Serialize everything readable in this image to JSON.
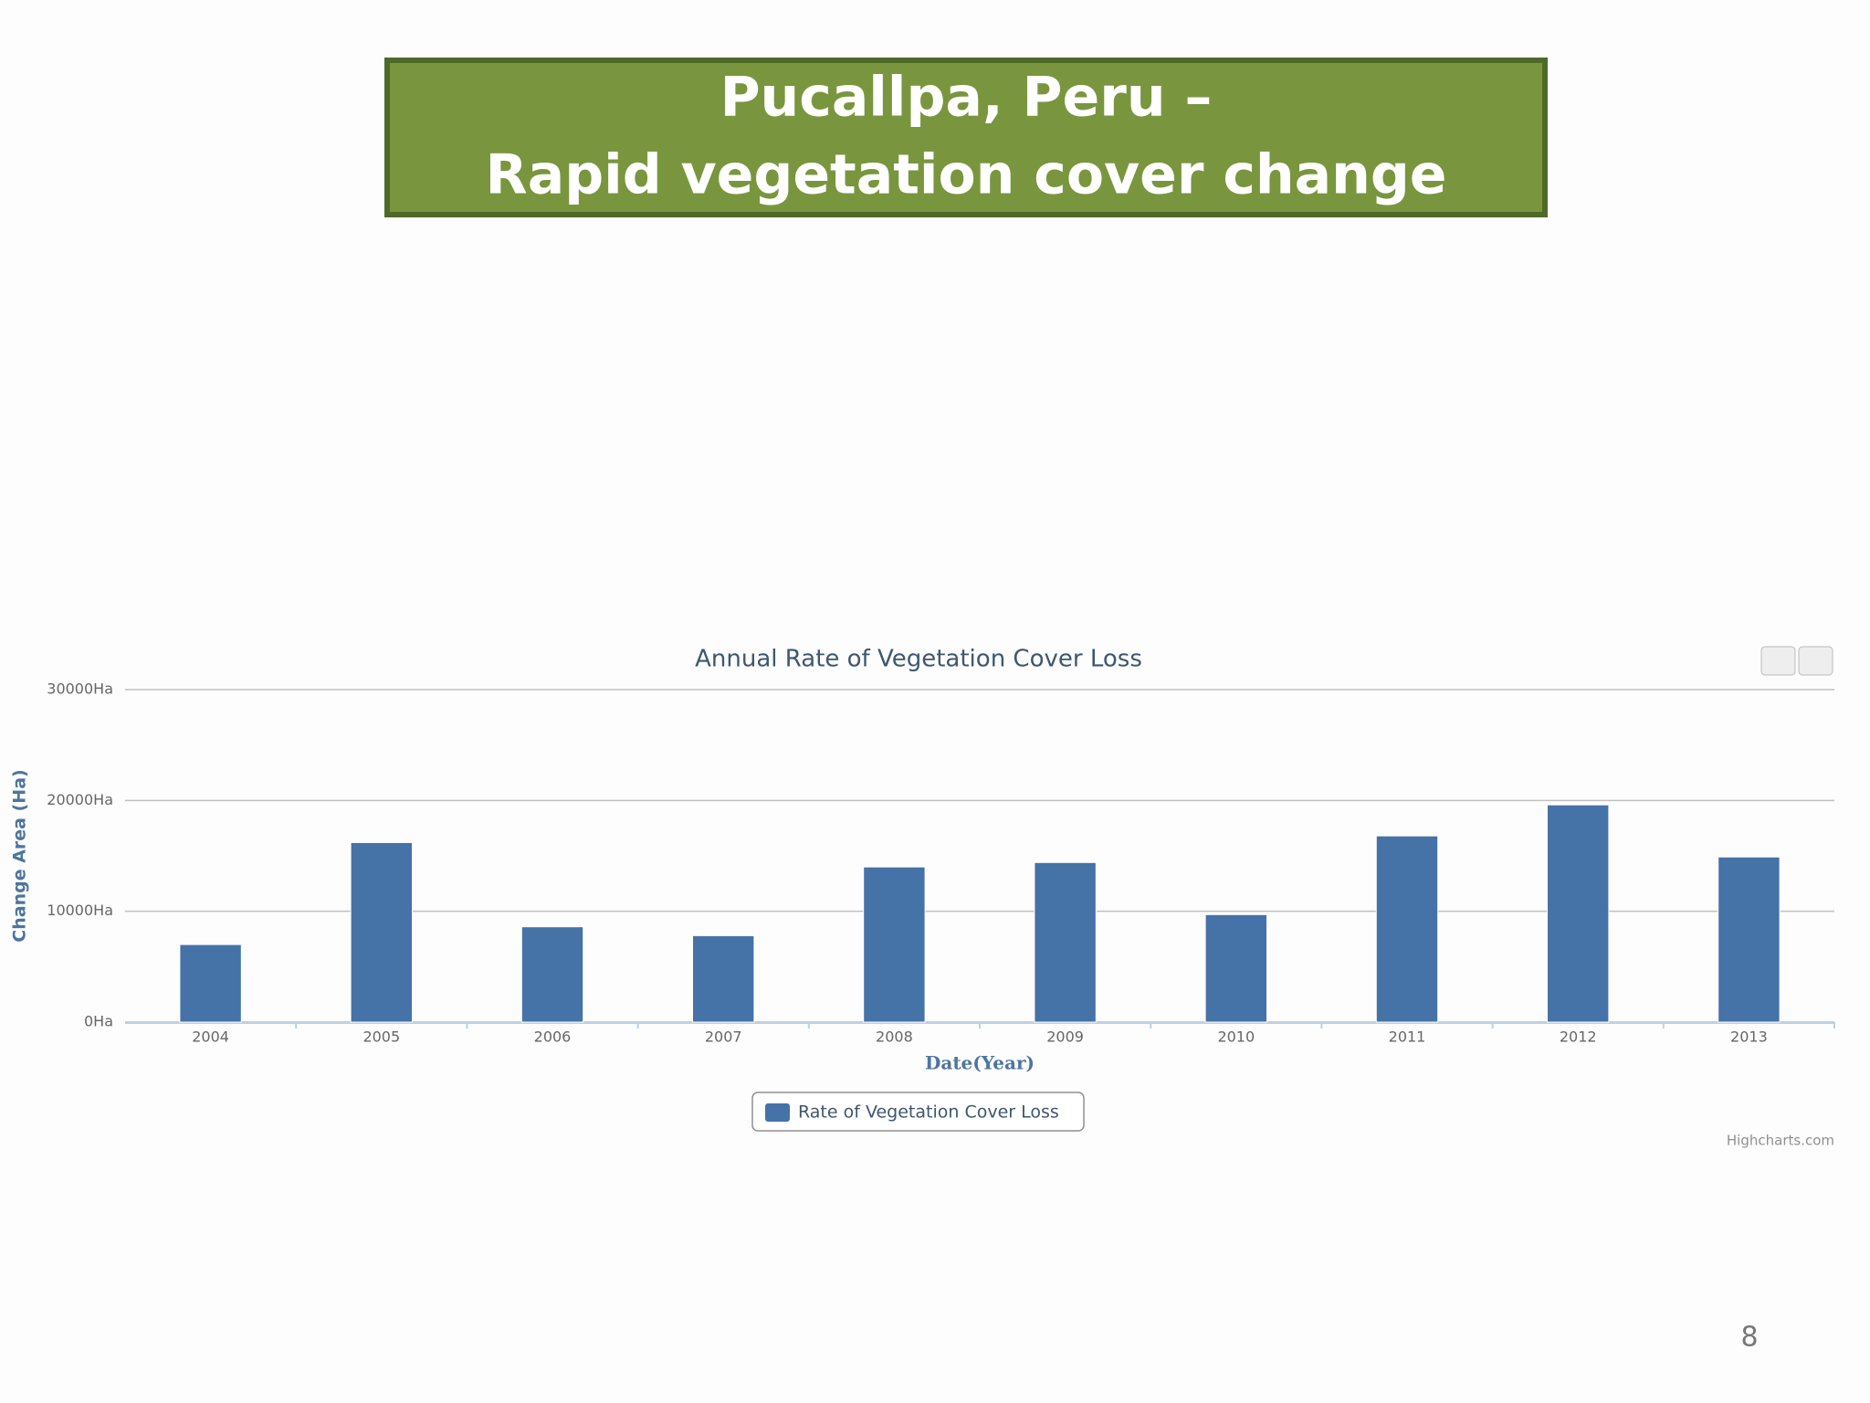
{
  "slide": {
    "title_lines": [
      "Pucallpa, Peru –",
      "Rapid vegetation cover change"
    ],
    "page_number": "8"
  },
  "chart_data": {
    "type": "bar",
    "title": "Annual Rate of Vegetation Cover Loss",
    "y_label": "Change Area (Ha)",
    "x_label": "Date(Year)",
    "categories": [
      "2004",
      "2005",
      "2006",
      "2007",
      "2008",
      "2009",
      "2010",
      "2011",
      "2012",
      "2013"
    ],
    "series": [
      {
        "name": "Rate of Vegetation Cover Loss",
        "color": "#4572a7",
        "values": [
          7000,
          16200,
          8600,
          7800,
          14000,
          14400,
          9700,
          16800,
          19600,
          14900
        ]
      }
    ],
    "ylim": [
      0,
      30000
    ],
    "yticks": [
      {
        "value": 0,
        "label": "0Ha"
      },
      {
        "value": 10000,
        "label": "10000Ha"
      },
      {
        "value": 20000,
        "label": "20000Ha"
      },
      {
        "value": 30000,
        "label": "30000Ha"
      }
    ],
    "grid": true,
    "legend": "bottom",
    "credit": "Highcharts.com"
  }
}
